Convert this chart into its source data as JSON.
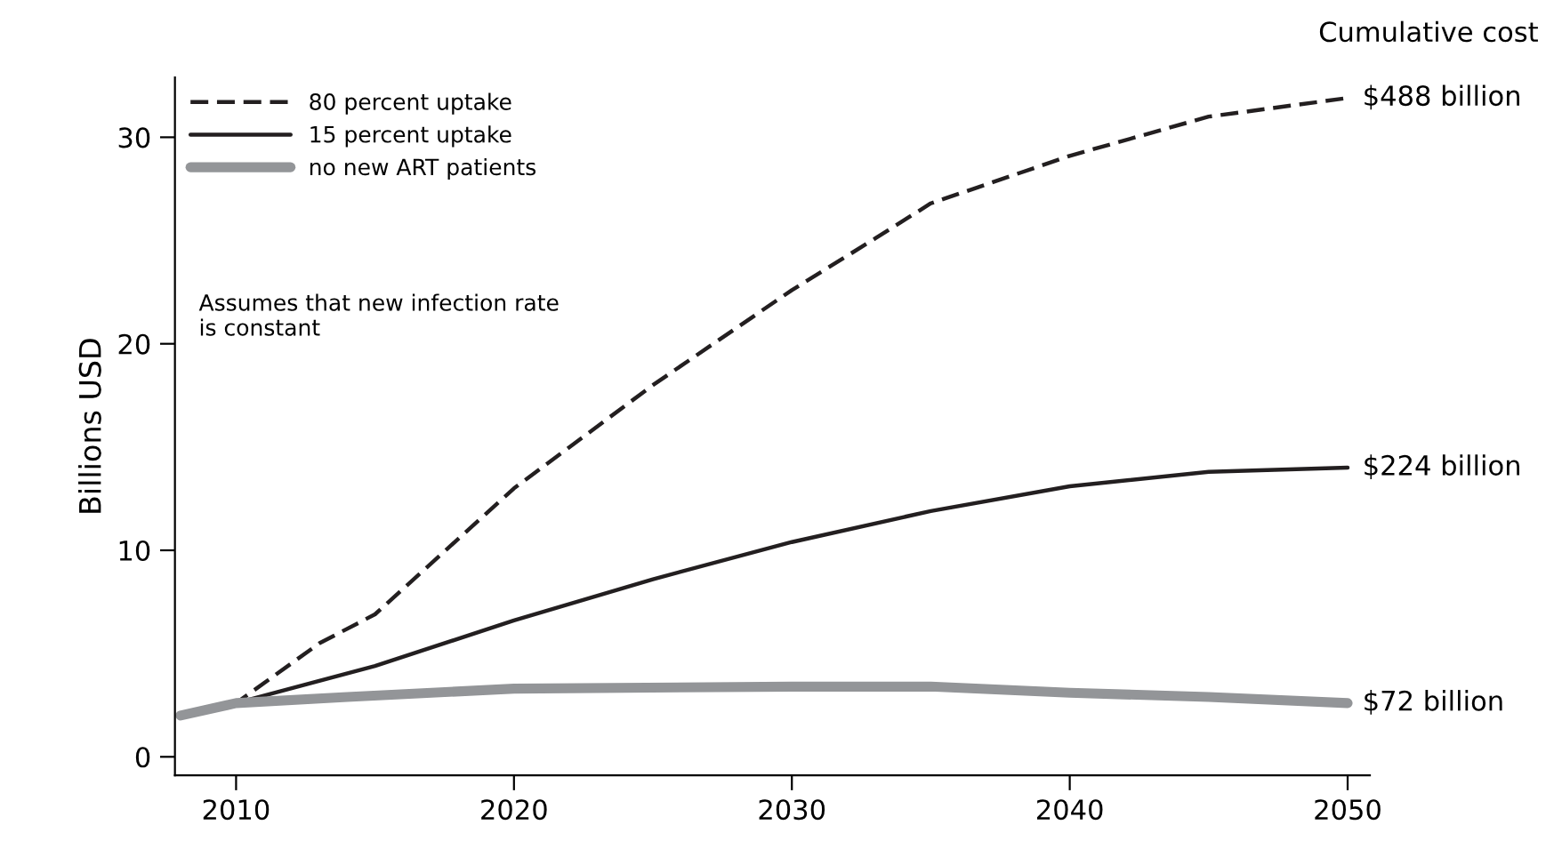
{
  "chart_data": {
    "type": "line",
    "ylabel": "Billions USD",
    "xlim": [
      2007.8,
      2050.8
    ],
    "ylim": [
      -0.9,
      32.9
    ],
    "xticks": [
      2010,
      2020,
      2030,
      2040,
      2050
    ],
    "yticks": [
      0,
      10,
      20,
      30
    ],
    "legend": "top left",
    "grid": false,
    "series": [
      {
        "name": "80 percent uptake",
        "color": "#231f20",
        "line_style": "dashed",
        "x": [
          2008,
          2010,
          2013,
          2015,
          2020,
          2025,
          2030,
          2033,
          2035,
          2040,
          2045,
          2050
        ],
        "values": [
          2.0,
          2.6,
          5.5,
          6.9,
          13.0,
          18.0,
          22.6,
          25.1,
          26.8,
          29.1,
          31.0,
          31.9
        ]
      },
      {
        "name": "15 percent uptake",
        "color": "#231f20",
        "line_style": "solid",
        "x": [
          2008,
          2010,
          2015,
          2020,
          2025,
          2030,
          2035,
          2040,
          2045,
          2050
        ],
        "values": [
          2.0,
          2.6,
          4.4,
          6.6,
          8.6,
          10.4,
          11.9,
          13.1,
          13.8,
          14.0
        ]
      },
      {
        "name": "no new ART patients",
        "color": "#939598",
        "line_style": "solid",
        "x": [
          2008,
          2010,
          2014,
          2020,
          2030,
          2035,
          2040,
          2045,
          2050
        ],
        "values": [
          2.0,
          2.6,
          2.9,
          3.3,
          3.4,
          3.4,
          3.1,
          2.9,
          2.6
        ]
      }
    ],
    "annotations": [
      "Cumulative cost",
      "Assumes that new infection rate\nis constant",
      "$488 billion",
      "$224 billion",
      "$72 billion"
    ]
  }
}
